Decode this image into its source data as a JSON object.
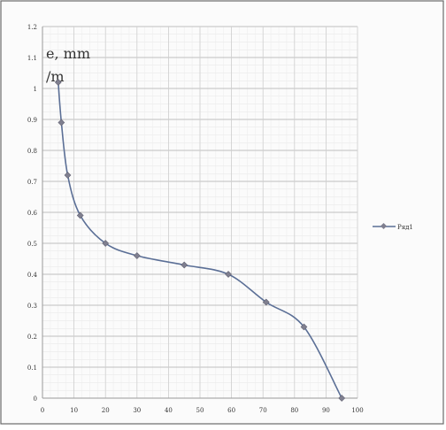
{
  "chart_data": {
    "type": "line",
    "title": "",
    "xlabel": "",
    "ylabel_lines": [
      "e, mm",
      "/m"
    ],
    "xlim": [
      0,
      100
    ],
    "ylim": [
      0,
      1.2
    ],
    "x_ticks": [
      "0",
      "10",
      "20",
      "30",
      "40",
      "50",
      "60",
      "70",
      "80",
      "90",
      "100"
    ],
    "y_ticks": [
      "0",
      "0.1",
      "0.2",
      "0.3",
      "0.4",
      "0.5",
      "0.6",
      "0.7",
      "0.8",
      "0.9",
      "1",
      "1.1",
      "1.2"
    ],
    "grid": true,
    "legend_position": "right",
    "series": [
      {
        "name": "Ряд1",
        "color": "#5b6f96",
        "marker_color": "#7f7f8f",
        "x": [
          5,
          6,
          8,
          12,
          20,
          30,
          45,
          59,
          71,
          83,
          95
        ],
        "y": [
          1.02,
          0.89,
          0.72,
          0.59,
          0.5,
          0.46,
          0.43,
          0.4,
          0.31,
          0.23,
          0.0
        ]
      }
    ]
  }
}
